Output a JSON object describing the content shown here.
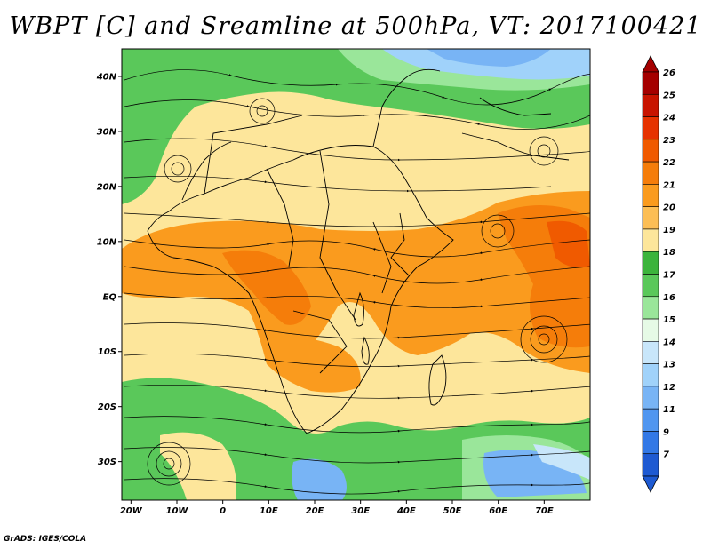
{
  "title": "WBPT [C] and Sreamline at 500hPa, VT: 2017100421",
  "credit": "GrADS: IGES/COLA",
  "map": {
    "lat_range": [
      -37,
      45
    ],
    "lon_range": [
      -22,
      80
    ],
    "lat_ticks": [
      {
        "value": 40,
        "label": "40N"
      },
      {
        "value": 30,
        "label": "30N"
      },
      {
        "value": 20,
        "label": "20N"
      },
      {
        "value": 10,
        "label": "10N"
      },
      {
        "value": 0,
        "label": "EQ"
      },
      {
        "value": -10,
        "label": "10S"
      },
      {
        "value": -20,
        "label": "20S"
      },
      {
        "value": -30,
        "label": "30S"
      }
    ],
    "lon_ticks": [
      {
        "value": -20,
        "label": "20W"
      },
      {
        "value": -10,
        "label": "10W"
      },
      {
        "value": 0,
        "label": "0"
      },
      {
        "value": 10,
        "label": "10E"
      },
      {
        "value": 20,
        "label": "20E"
      },
      {
        "value": 30,
        "label": "30E"
      },
      {
        "value": 40,
        "label": "40E"
      },
      {
        "value": 50,
        "label": "50E"
      },
      {
        "value": 60,
        "label": "60E"
      },
      {
        "value": 70,
        "label": "70E"
      }
    ]
  },
  "colorbar": {
    "levels": [
      {
        "label": "26",
        "color": "#a50000"
      },
      {
        "label": "25",
        "color": "#c81400"
      },
      {
        "label": "24",
        "color": "#e63200"
      },
      {
        "label": "23",
        "color": "#f05a00"
      },
      {
        "label": "22",
        "color": "#f57d0a"
      },
      {
        "label": "21",
        "color": "#fa9b1e"
      },
      {
        "label": "20",
        "color": "#fcbe55"
      },
      {
        "label": "19",
        "color": "#fde69b"
      },
      {
        "label": "18",
        "color": "#3cb43c"
      },
      {
        "label": "17",
        "color": "#5ac85a"
      },
      {
        "label": "16",
        "color": "#9ae69a"
      },
      {
        "label": "15",
        "color": "#e6fae6"
      },
      {
        "label": "14",
        "color": "#c8e6fa"
      },
      {
        "label": "13",
        "color": "#a0d2fa"
      },
      {
        "label": "12",
        "color": "#78b4f5"
      },
      {
        "label": "11",
        "color": "#5096f0"
      },
      {
        "label": "9",
        "color": "#3278e6"
      },
      {
        "label": "7",
        "color": "#1e5ad2"
      }
    ],
    "top_color": "#a50000",
    "bottom_color": "#1e5ad2"
  }
}
